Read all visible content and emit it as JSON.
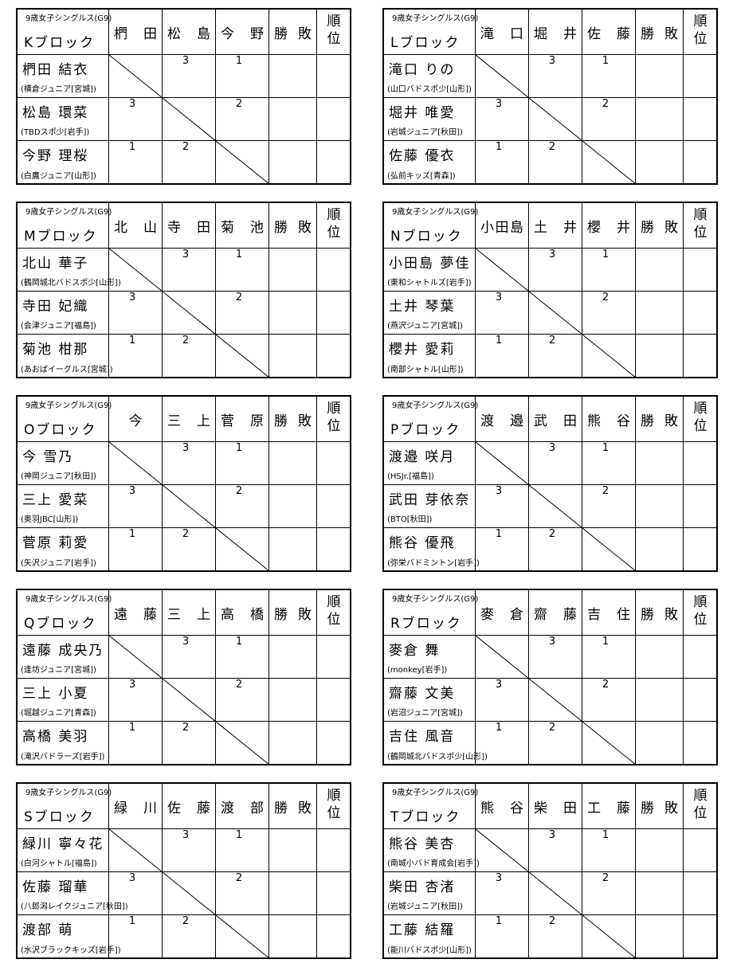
{
  "blocks": [
    {
      "category": "9歳女子シングルス(G9)",
      "block": "Kブロック",
      "opponents": [
        "椚田",
        "松島",
        "今野"
      ],
      "result_header": "勝敗",
      "rank_header": "順位",
      "players": [
        {
          "name": "椚田 結衣",
          "club": "(横倉ジュニア[宮城])",
          "scores": [
            null,
            3,
            1
          ]
        },
        {
          "name": "松島 環菜",
          "club": "(TBDスポ少[岩手])",
          "scores": [
            3,
            null,
            2
          ]
        },
        {
          "name": "今野 理桜",
          "club": "(白鷹ジュニア[山形])",
          "scores": [
            1,
            2,
            null
          ]
        }
      ]
    },
    {
      "category": "9歳女子シングルス(G9)",
      "block": "Lブロック",
      "opponents": [
        "滝口",
        "堀井",
        "佐藤"
      ],
      "result_header": "勝敗",
      "rank_header": "順位",
      "players": [
        {
          "name": "滝口 りの",
          "club": "(山口バドスポ少[山形])",
          "scores": [
            null,
            3,
            1
          ]
        },
        {
          "name": "堀井 唯愛",
          "club": "(岩城ジュニア[秋田])",
          "scores": [
            3,
            null,
            2
          ]
        },
        {
          "name": "佐藤 優衣",
          "club": "(弘前キッズ[青森])",
          "scores": [
            1,
            2,
            null
          ]
        }
      ]
    },
    {
      "category": "9歳女子シングルス(G9)",
      "block": "Mブロック",
      "opponents": [
        "北山",
        "寺田",
        "菊池"
      ],
      "result_header": "勝敗",
      "rank_header": "順位",
      "players": [
        {
          "name": "北山 華子",
          "club": "(鶴岡城北バドスポ少[山形])",
          "scores": [
            null,
            3,
            1
          ]
        },
        {
          "name": "寺田 妃織",
          "club": "(会津ジュニア[福島])",
          "scores": [
            3,
            null,
            2
          ]
        },
        {
          "name": "菊池 柑那",
          "club": "(あおばイーグルス[宮城])",
          "scores": [
            1,
            2,
            null
          ]
        }
      ]
    },
    {
      "category": "9歳女子シングルス(G9)",
      "block": "Nブロック",
      "opponents": [
        "小田島",
        "土井",
        "櫻井"
      ],
      "result_header": "勝敗",
      "rank_header": "順位",
      "players": [
        {
          "name": "小田島 夢佳",
          "club": "(東和シャトルズ[岩手])",
          "scores": [
            null,
            3,
            1
          ]
        },
        {
          "name": "土井 琴葉",
          "club": "(燕沢ジュニア[宮城])",
          "scores": [
            3,
            null,
            2
          ]
        },
        {
          "name": "櫻井 愛莉",
          "club": "(南部シャトル[山形])",
          "scores": [
            1,
            2,
            null
          ]
        }
      ]
    },
    {
      "category": "9歳女子シングルス(G9)",
      "block": "Oブロック",
      "opponents": [
        "今",
        "三上",
        "菅原"
      ],
      "result_header": "勝敗",
      "rank_header": "順位",
      "players": [
        {
          "name": "今 雪乃",
          "club": "(神岡ジュニア[秋田])",
          "scores": [
            null,
            3,
            1
          ]
        },
        {
          "name": "三上 愛菜",
          "club": "(奥羽JBC[山形])",
          "scores": [
            3,
            null,
            2
          ]
        },
        {
          "name": "菅原 莉愛",
          "club": "(矢沢ジュニア[岩手])",
          "scores": [
            1,
            2,
            null
          ]
        }
      ]
    },
    {
      "category": "9歳女子シングルス(G9)",
      "block": "Pブロック",
      "opponents": [
        "渡邉",
        "武田",
        "熊谷"
      ],
      "result_header": "勝敗",
      "rank_header": "順位",
      "players": [
        {
          "name": "渡邉 咲月",
          "club": "(HSJr.[福島])",
          "scores": [
            null,
            3,
            1
          ]
        },
        {
          "name": "武田 芽依奈",
          "club": "(BTO[秋田])",
          "scores": [
            3,
            null,
            2
          ]
        },
        {
          "name": "熊谷 優飛",
          "club": "(弥栄バドミントン[岩手])",
          "scores": [
            1,
            2,
            null
          ]
        }
      ]
    },
    {
      "category": "9歳女子シングルス(G9)",
      "block": "Qブロック",
      "opponents": [
        "遠藤",
        "三上",
        "高橋"
      ],
      "result_header": "勝敗",
      "rank_header": "順位",
      "players": [
        {
          "name": "遠藤 成央乃",
          "club": "(逢坊ジュニア[宮城])",
          "scores": [
            null,
            3,
            1
          ]
        },
        {
          "name": "三上 小夏",
          "club": "(堀越ジュニア[青森])",
          "scores": [
            3,
            null,
            2
          ]
        },
        {
          "name": "高橋 美羽",
          "club": "(滝沢バドラーズ[岩手])",
          "scores": [
            1,
            2,
            null
          ]
        }
      ]
    },
    {
      "category": "9歳女子シングルス(G9)",
      "block": "Rブロック",
      "opponents": [
        "麥倉",
        "齋藤",
        "吉住"
      ],
      "result_header": "勝敗",
      "rank_header": "順位",
      "players": [
        {
          "name": "麥倉 舞",
          "club": "(monkey[岩手])",
          "scores": [
            null,
            3,
            1
          ]
        },
        {
          "name": "齋藤 文美",
          "club": "(岩沼ジュニア[宮城])",
          "scores": [
            3,
            null,
            2
          ]
        },
        {
          "name": "吉住 風音",
          "club": "(鶴岡城北バドスポ少[山形])",
          "scores": [
            1,
            2,
            null
          ]
        }
      ]
    },
    {
      "category": "9歳女子シングルス(G9)",
      "block": "Sブロック",
      "opponents": [
        "緑川",
        "佐藤",
        "渡部"
      ],
      "result_header": "勝敗",
      "rank_header": "順位",
      "players": [
        {
          "name": "緑川 寧々花",
          "club": "(白河シャトル[福島])",
          "scores": [
            null,
            3,
            1
          ]
        },
        {
          "name": "佐藤 瑠華",
          "club": "(八郎潟レイクジュニア[秋田])",
          "scores": [
            3,
            null,
            2
          ]
        },
        {
          "name": "渡部 萌",
          "club": "(水沢ブラックキッズ[岩手])",
          "scores": [
            1,
            2,
            null
          ]
        }
      ]
    },
    {
      "category": "9歳女子シングルス(G9)",
      "block": "Tブロック",
      "opponents": [
        "熊谷",
        "柴田",
        "工藤"
      ],
      "result_header": "勝敗",
      "rank_header": "順位",
      "players": [
        {
          "name": "熊谷 美杏",
          "club": "(南城小バド育成会[岩手])",
          "scores": [
            null,
            3,
            1
          ]
        },
        {
          "name": "柴田 杏渚",
          "club": "(岩城ジュニア[秋田])",
          "scores": [
            3,
            null,
            2
          ]
        },
        {
          "name": "工藤 結羅",
          "club": "(能川バドスポ少[山形])",
          "scores": [
            1,
            2,
            null
          ]
        }
      ]
    }
  ]
}
